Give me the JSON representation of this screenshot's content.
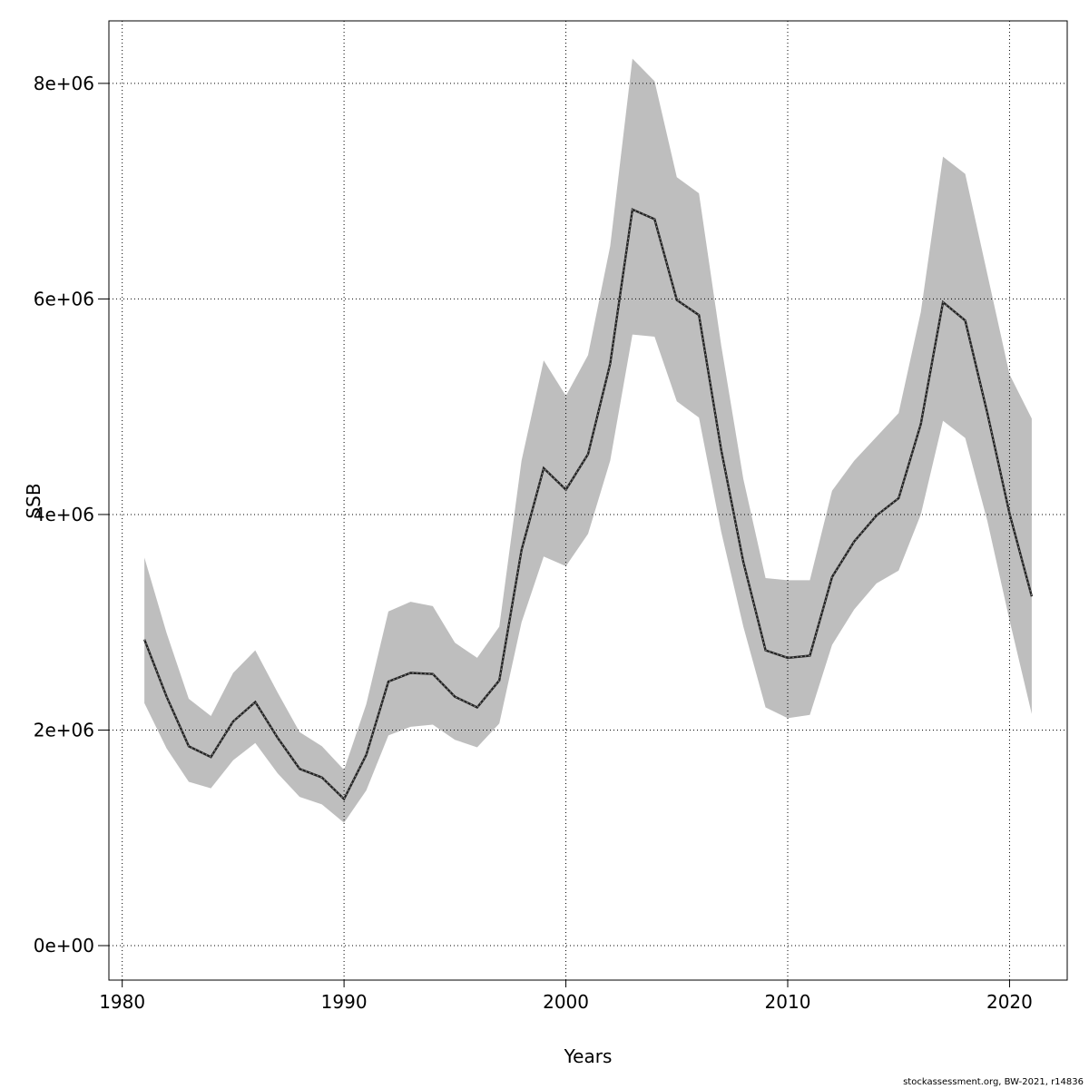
{
  "chart_data": {
    "type": "line",
    "title": "",
    "xlabel": "Years",
    "ylabel": "SSB",
    "xlim": [
      1979.4,
      2022.6
    ],
    "ylim": [
      -320000,
      8580000
    ],
    "x_ticks": [
      1980,
      1990,
      2000,
      2010,
      2020
    ],
    "x_tick_labels": [
      "1980",
      "1990",
      "2000",
      "2010",
      "2020"
    ],
    "y_ticks": [
      0,
      2000000,
      4000000,
      6000000,
      8000000
    ],
    "y_tick_labels": [
      "0e+00",
      "2e+06",
      "4e+06",
      "6e+06",
      "8e+06"
    ],
    "grid": true,
    "x": [
      1981,
      1982,
      1983,
      1984,
      1985,
      1986,
      1987,
      1988,
      1989,
      1990,
      1991,
      1992,
      1993,
      1994,
      1995,
      1996,
      1997,
      1998,
      1999,
      2000,
      2001,
      2002,
      2003,
      2004,
      2005,
      2006,
      2007,
      2008,
      2009,
      2010,
      2011,
      2012,
      2013,
      2014,
      2015,
      2016,
      2017,
      2018,
      2019,
      2020,
      2021
    ],
    "series": [
      {
        "style": "dashed-estimate",
        "color": "#222222",
        "values": [
          2840000,
          2310000,
          1850000,
          1750000,
          2080000,
          2260000,
          1930000,
          1640000,
          1560000,
          1360000,
          1770000,
          2450000,
          2530000,
          2520000,
          2310000,
          2210000,
          2460000,
          3670000,
          4430000,
          4230000,
          4560000,
          5400000,
          6830000,
          6740000,
          5990000,
          5850000,
          4600000,
          3560000,
          2740000,
          2670000,
          2690000,
          3420000,
          3750000,
          3990000,
          4150000,
          4840000,
          5970000,
          5800000,
          4940000,
          4010000,
          3240000
        ]
      },
      {
        "style": "confidence-band-upper",
        "color": "#bebebe",
        "values": [
          3600000,
          2900000,
          2290000,
          2130000,
          2530000,
          2740000,
          2350000,
          1980000,
          1850000,
          1630000,
          2240000,
          3100000,
          3190000,
          3150000,
          2810000,
          2670000,
          2960000,
          4500000,
          5430000,
          5100000,
          5480000,
          6490000,
          8230000,
          8020000,
          7130000,
          6980000,
          5570000,
          4330000,
          3410000,
          3390000,
          3390000,
          4220000,
          4500000,
          4720000,
          4940000,
          5880000,
          7320000,
          7160000,
          6230000,
          5300000,
          4890000
        ]
      },
      {
        "style": "confidence-band-lower",
        "color": "#bebebe",
        "values": [
          2250000,
          1830000,
          1520000,
          1460000,
          1720000,
          1880000,
          1600000,
          1380000,
          1310000,
          1140000,
          1440000,
          1950000,
          2030000,
          2050000,
          1910000,
          1840000,
          2060000,
          3000000,
          3610000,
          3520000,
          3820000,
          4500000,
          5670000,
          5650000,
          5050000,
          4900000,
          3840000,
          2960000,
          2210000,
          2110000,
          2140000,
          2790000,
          3120000,
          3360000,
          3480000,
          4000000,
          4870000,
          4710000,
          3940000,
          3020000,
          2150000
        ]
      }
    ]
  },
  "footer": {
    "note": "stockassessment.org, BW-2021, r14836"
  }
}
